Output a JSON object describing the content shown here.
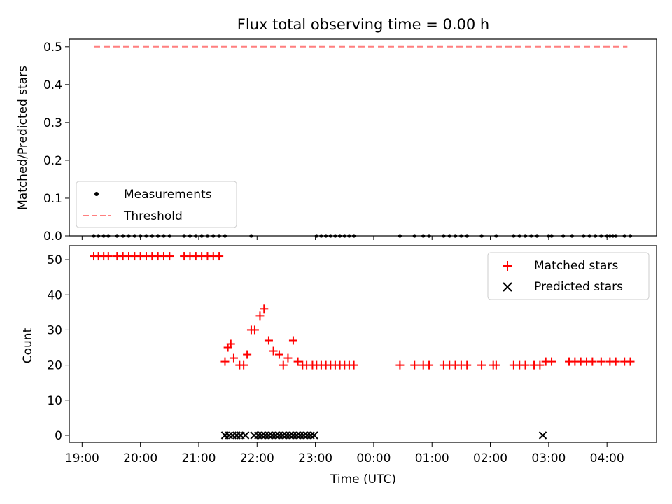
{
  "chart_data": [
    {
      "type": "scatter",
      "title": "Flux total observing time = 0.00 h",
      "xlabel": "",
      "ylabel": "Matched/Predicted stars",
      "ylim": [
        0,
        0.52
      ],
      "yticks": [
        "0.0",
        "0.1",
        "0.2",
        "0.3",
        "0.4",
        "0.5"
      ],
      "threshold": 0.5,
      "threshold_range": [
        19.2,
        28.35
      ],
      "legend": {
        "position": "lower-left",
        "entries": [
          "Measurements",
          "Threshold"
        ]
      },
      "colors": {
        "measurements": "#000000",
        "threshold": "#ff7f7f"
      },
      "series": [
        {
          "name": "Measurements",
          "x": [
            19.2,
            19.28,
            19.37,
            19.45,
            19.6,
            19.7,
            19.8,
            19.9,
            20,
            20.1,
            20.2,
            20.3,
            20.4,
            20.5,
            20.75,
            20.85,
            20.95,
            21.05,
            21.15,
            21.25,
            21.35,
            21.45,
            21.9,
            23.02,
            23.1,
            23.18,
            23.26,
            23.34,
            23.42,
            23.5,
            23.58,
            23.66,
            24.45,
            24.7,
            24.85,
            24.95,
            25.2,
            25.3,
            25.4,
            25.5,
            25.6,
            25.85,
            26.1,
            26.4,
            26.5,
            26.6,
            26.7,
            26.8,
            27,
            27.05,
            27.25,
            27.4,
            27.6,
            27.7,
            27.8,
            27.9,
            28,
            28.05,
            28.1,
            28.15,
            28.3,
            28.4
          ],
          "y": [
            0,
            0,
            0,
            0,
            0,
            0,
            0,
            0,
            0,
            0,
            0,
            0,
            0,
            0,
            0,
            0,
            0,
            0,
            0,
            0,
            0,
            0,
            0,
            0,
            0,
            0,
            0,
            0,
            0,
            0,
            0,
            0,
            0,
            0,
            0,
            0,
            0,
            0,
            0,
            0,
            0,
            0,
            0,
            0,
            0,
            0,
            0,
            0,
            0,
            0,
            0,
            0,
            0,
            0,
            0,
            0,
            0,
            0,
            0,
            0,
            0,
            0
          ]
        }
      ]
    },
    {
      "type": "scatter",
      "title": "",
      "xlabel": "Time (UTC)",
      "ylabel": "Count",
      "ylim": [
        -2,
        54
      ],
      "yticks": [
        "0",
        "10",
        "20",
        "30",
        "40",
        "50"
      ],
      "xlim": [
        18.78,
        28.85
      ],
      "xtick_values": [
        19,
        20,
        21,
        22,
        23,
        24,
        25,
        26,
        27,
        28
      ],
      "xticks": [
        "19:00",
        "20:00",
        "21:00",
        "22:00",
        "23:00",
        "00:00",
        "01:00",
        "02:00",
        "03:00",
        "04:00"
      ],
      "legend": {
        "position": "top-right",
        "entries": [
          "Matched stars",
          "Predicted stars"
        ]
      },
      "colors": {
        "matched": "#ff0000",
        "predicted": "#000000"
      },
      "series": [
        {
          "name": "Matched stars",
          "x": [
            19.2,
            19.28,
            19.37,
            19.45,
            19.6,
            19.7,
            19.8,
            19.9,
            20,
            20.1,
            20.2,
            20.3,
            20.4,
            20.5,
            20.75,
            20.85,
            20.95,
            21.05,
            21.15,
            21.25,
            21.35,
            21.45,
            21.5,
            21.55,
            21.6,
            21.7,
            21.77,
            21.83,
            21.9,
            21.96,
            22.05,
            22.12,
            22.2,
            22.28,
            22.38,
            22.45,
            22.53,
            22.62,
            22.7,
            22.78,
            22.85,
            22.95,
            23.02,
            23.1,
            23.18,
            23.26,
            23.34,
            23.42,
            23.5,
            23.58,
            23.66,
            24.45,
            24.7,
            24.85,
            24.95,
            25.2,
            25.3,
            25.4,
            25.5,
            25.6,
            25.85,
            26.05,
            26.1,
            26.4,
            26.5,
            26.6,
            26.75,
            26.85,
            26.95,
            27.05,
            27.35,
            27.45,
            27.55,
            27.65,
            27.75,
            27.9,
            28.05,
            28.15,
            28.3,
            28.4
          ],
          "y": [
            51,
            51,
            51,
            51,
            51,
            51,
            51,
            51,
            51,
            51,
            51,
            51,
            51,
            51,
            51,
            51,
            51,
            51,
            51,
            51,
            51,
            21,
            25,
            26,
            22,
            20,
            20,
            23,
            30,
            30,
            34,
            36,
            27,
            24,
            23,
            20,
            22,
            27,
            21,
            20,
            20,
            20,
            20,
            20,
            20,
            20,
            20,
            20,
            20,
            20,
            20,
            20,
            20,
            20,
            20,
            20,
            20,
            20,
            20,
            20,
            20,
            20,
            20,
            20,
            20,
            20,
            20,
            20,
            21,
            21,
            21,
            21,
            21,
            21,
            21,
            21,
            21,
            21,
            21,
            21
          ]
        },
        {
          "name": "Predicted stars",
          "x": [
            21.45,
            21.52,
            21.58,
            21.65,
            21.72,
            21.8,
            21.95,
            22.02,
            22.08,
            22.14,
            22.2,
            22.26,
            22.32,
            22.38,
            22.44,
            22.5,
            22.56,
            22.62,
            22.68,
            22.74,
            22.8,
            22.86,
            22.92,
            22.98,
            26.9
          ],
          "y": [
            0,
            0,
            0,
            0,
            0,
            0,
            0,
            0,
            0,
            0,
            0,
            0,
            0,
            0,
            0,
            0,
            0,
            0,
            0,
            0,
            0,
            0,
            0,
            0,
            0
          ]
        }
      ]
    }
  ]
}
